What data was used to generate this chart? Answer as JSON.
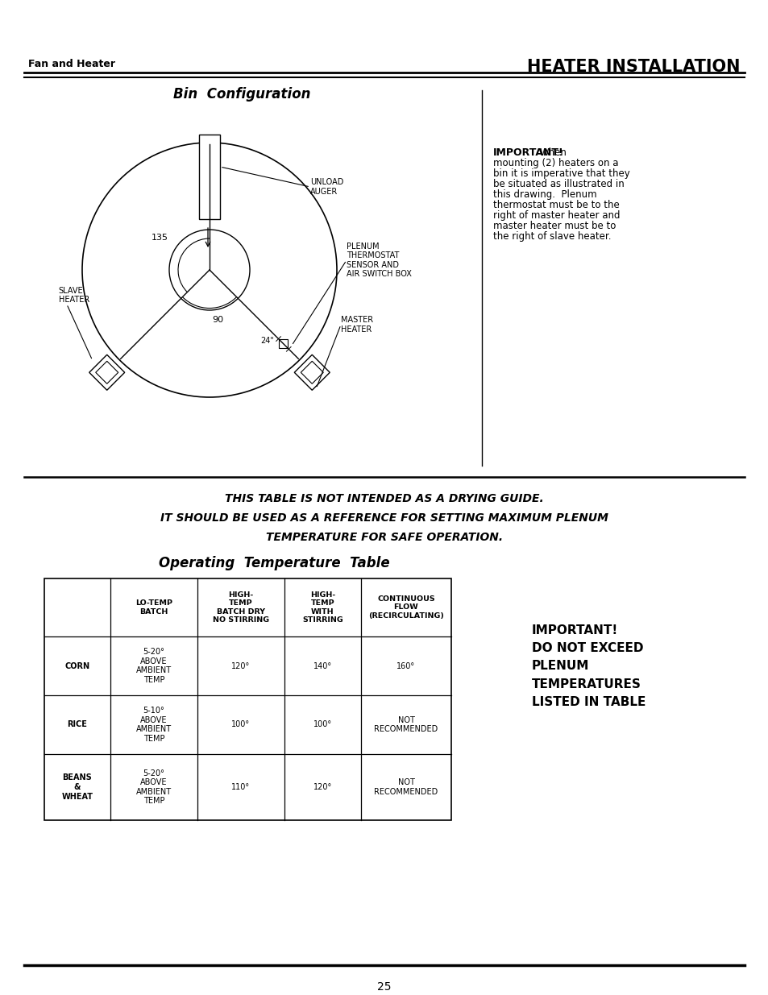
{
  "page_title_left": "Fan and Heater",
  "page_title_right": "HEATER INSTALLATION",
  "bin_config_title": "Bin  Configuration",
  "warning_line1": "THIS TABLE IS NOT INTENDED AS A DRYING GUIDE.",
  "warning_line2": "IT SHOULD BE USED AS A REFERENCE FOR SETTING MAXIMUM PLENUM",
  "warning_line3": "TEMPERATURE FOR SAFE OPERATION.",
  "table_title": "Operating  Temperature  Table",
  "col_headers": [
    "",
    "LO-TEMP\nBATCH",
    "HIGH-\nTEMP\nBATCH DRY\nNO STIRRING",
    "HIGH-\nTEMP\nWITH\nSTIRRING",
    "CONTINUOUS\nFLOW\n(RECIRCULATING)"
  ],
  "rows": [
    [
      "CORN",
      "5-20°\nABOVE\nAMBIENT\nTEMP",
      "120°",
      "140°",
      "160°"
    ],
    [
      "RICE",
      "5-10°\nABOVE\nAMBIENT\nTEMP",
      "100°",
      "100°",
      "NOT\nRECOMMENDED"
    ],
    [
      "BEANS\n&\nWHEAT",
      "5-20°\nABOVE\nAMBIENT\nTEMP",
      "110°",
      "120°",
      "NOT\nRECOMMENDED"
    ]
  ],
  "important_table_right": "IMPORTANT!\nDO NOT EXCEED\nPLENUM\nTEMPERATURES\nLISTED IN TABLE",
  "page_number": "25",
  "bg_color": "#ffffff",
  "text_color": "#000000"
}
